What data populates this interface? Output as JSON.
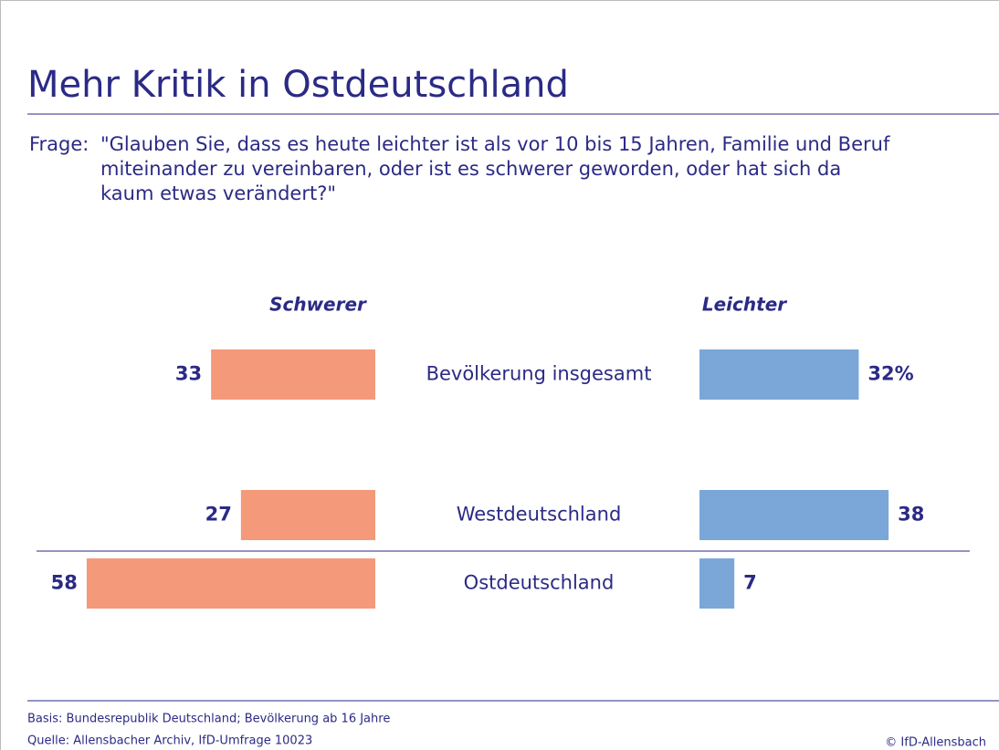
{
  "chart_data": {
    "type": "butterfly-bar",
    "title": "Mehr Kritik in Ostdeutschland",
    "question_label": "Frage:",
    "question_lines": [
      "\"Glauben Sie, dass es heute leichter ist als vor 10 bis 15 Jahren, Familie und Beruf",
      "miteinander zu vereinbaren, oder ist es schwerer geworden, oder hat sich da",
      "kaum etwas verändert?\""
    ],
    "categories": [
      "Bevölkerung insgesamt",
      "Westdeutschland",
      "Ostdeutschland"
    ],
    "series": [
      {
        "name": "Schwerer",
        "color": "#f4997a",
        "values": [
          33,
          27,
          58
        ]
      },
      {
        "name": "Leichter",
        "color": "#7ba7d8",
        "values": [
          32,
          38,
          7
        ],
        "value_labels": [
          "32%",
          "38",
          "7"
        ]
      }
    ],
    "footnotes": [
      "Basis: Bundesrepublik Deutschland; Bevölkerung ab 16 Jahre",
      "Quelle: Allensbacher Archiv, IfD-Umfrage 10023"
    ],
    "copyright": "© IfD-Allensbach"
  }
}
